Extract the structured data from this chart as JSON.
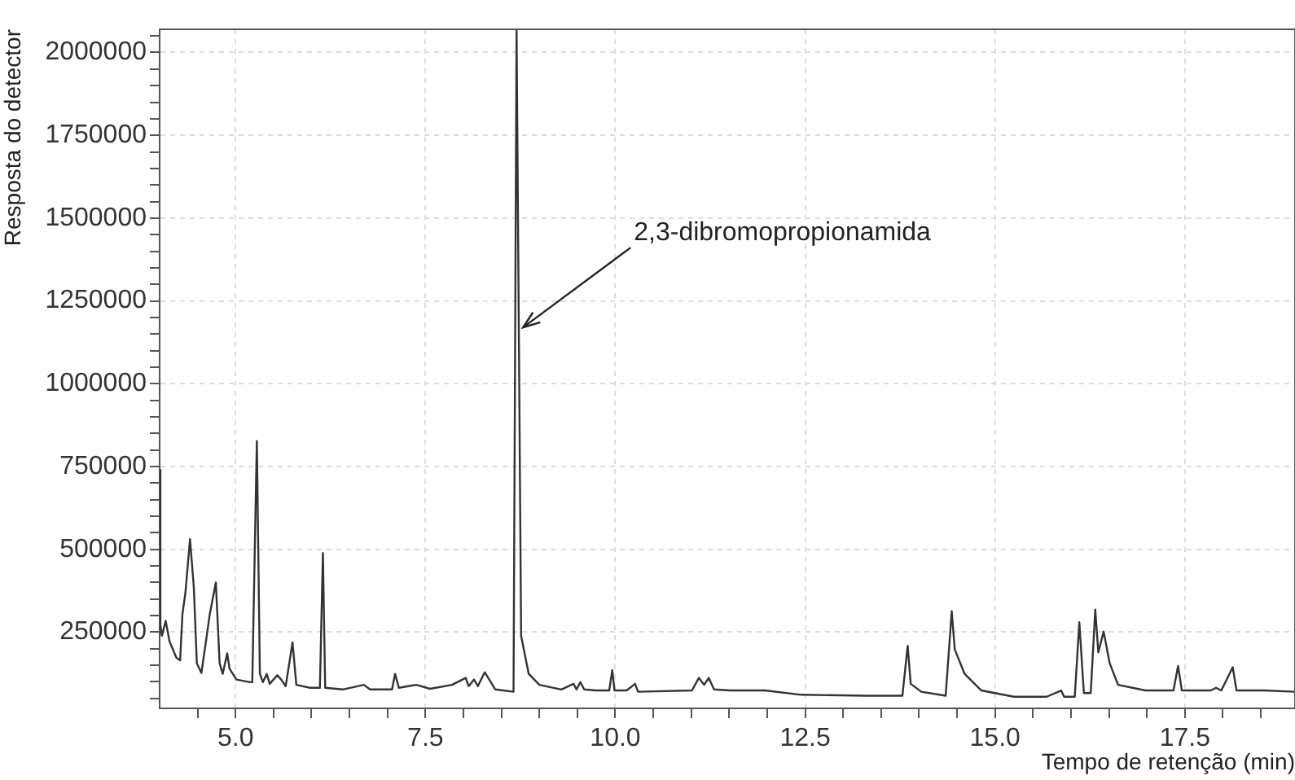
{
  "chart_data": {
    "type": "line",
    "xlabel": "Tempo de retenção (min)",
    "ylabel": "Resposta do detector",
    "annotations": [
      {
        "text": "2,3-dibromopropionamida",
        "x": 8.7,
        "y": 1170000
      }
    ],
    "xlim": [
      4.0,
      18.95
    ],
    "ylim": [
      20000,
      2070000
    ],
    "xticks": [
      {
        "value": 4.5,
        "label": null
      },
      {
        "value": 5,
        "label": "5.0"
      },
      {
        "value": 5.5,
        "label": null
      },
      {
        "value": 6,
        "label": null
      },
      {
        "value": 6.5,
        "label": null
      },
      {
        "value": 7,
        "label": null
      },
      {
        "value": 7.5,
        "label": "7.5"
      },
      {
        "value": 8,
        "label": null
      },
      {
        "value": 8.5,
        "label": null
      },
      {
        "value": 9,
        "label": null
      },
      {
        "value": 9.5,
        "label": null
      },
      {
        "value": 10,
        "label": "10.0"
      },
      {
        "value": 10.5,
        "label": null
      },
      {
        "value": 11,
        "label": null
      },
      {
        "value": 11.5,
        "label": null
      },
      {
        "value": 12,
        "label": null
      },
      {
        "value": 12.5,
        "label": "12.5"
      },
      {
        "value": 13,
        "label": null
      },
      {
        "value": 13.5,
        "label": null
      },
      {
        "value": 14,
        "label": null
      },
      {
        "value": 14.5,
        "label": null
      },
      {
        "value": 15,
        "label": "15.0"
      },
      {
        "value": 15.5,
        "label": null
      },
      {
        "value": 16,
        "label": null
      },
      {
        "value": 16.5,
        "label": null
      },
      {
        "value": 17,
        "label": null
      },
      {
        "value": 17.5,
        "label": "17.5"
      },
      {
        "value": 18,
        "label": null
      },
      {
        "value": 18.5,
        "label": null
      }
    ],
    "yticks": [
      {
        "value": 50000,
        "label": null
      },
      {
        "value": 100000,
        "label": null
      },
      {
        "value": 150000,
        "label": null
      },
      {
        "value": 200000,
        "label": null
      },
      250000,
      {
        "value": 300000,
        "label": null
      },
      {
        "value": 350000,
        "label": null
      },
      {
        "value": 400000,
        "label": null
      },
      {
        "value": 450000,
        "label": null
      },
      500000,
      {
        "value": 550000,
        "label": null
      },
      {
        "value": 600000,
        "label": null
      },
      {
        "value": 650000,
        "label": null
      },
      {
        "value": 700000,
        "label": null
      },
      750000,
      {
        "value": 800000,
        "label": null
      },
      {
        "value": 850000,
        "label": null
      },
      {
        "value": 900000,
        "label": null
      },
      {
        "value": 950000,
        "label": null
      },
      1000000,
      {
        "value": 1050000,
        "label": null
      },
      {
        "value": 1100000,
        "label": null
      },
      {
        "value": 1150000,
        "label": null
      },
      {
        "value": 1200000,
        "label": null
      },
      1250000,
      {
        "value": 1300000,
        "label": null
      },
      {
        "value": 1350000,
        "label": null
      },
      {
        "value": 1400000,
        "label": null
      },
      {
        "value": 1450000,
        "label": null
      },
      1500000,
      {
        "value": 1550000,
        "label": null
      },
      {
        "value": 1600000,
        "label": null
      },
      {
        "value": 1650000,
        "label": null
      },
      {
        "value": 1700000,
        "label": null
      },
      1750000,
      {
        "value": 1800000,
        "label": null
      },
      {
        "value": 1850000,
        "label": null
      },
      {
        "value": 1900000,
        "label": null
      },
      {
        "value": 1950000,
        "label": null
      },
      2000000,
      {
        "value": 2050000,
        "label": null
      }
    ],
    "grid": true,
    "legend": false,
    "marker": "none",
    "line_style": "solid",
    "series": [
      {
        "color": "#333333",
        "x": [
          4.0,
          4.01,
          4.03,
          4.08,
          4.13,
          4.22,
          4.27,
          4.3,
          4.34,
          4.4,
          4.45,
          4.49,
          4.55,
          4.6,
          4.66,
          4.74,
          4.79,
          4.83,
          4.89,
          4.92,
          5.01,
          5.19,
          5.22,
          5.28,
          5.32,
          5.36,
          5.41,
          5.45,
          5.55,
          5.6,
          5.66,
          5.75,
          5.8,
          5.98,
          6.11,
          6.15,
          6.18,
          6.41,
          6.69,
          6.77,
          7.06,
          7.1,
          7.15,
          7.38,
          7.56,
          7.85,
          8.03,
          8.07,
          8.14,
          8.19,
          8.28,
          8.34,
          8.42,
          8.66,
          8.7,
          8.76,
          8.86,
          9.0,
          9.29,
          9.45,
          9.49,
          9.54,
          9.59,
          9.75,
          9.92,
          9.96,
          9.99,
          10.15,
          10.26,
          10.3,
          11.01,
          11.1,
          11.17,
          11.23,
          11.3,
          11.51,
          11.97,
          12.45,
          13.31,
          13.78,
          13.85,
          13.89,
          14.03,
          14.35,
          14.43,
          14.47,
          14.6,
          14.82,
          15.25,
          15.68,
          15.87,
          15.91,
          16.05,
          16.11,
          16.17,
          16.26,
          16.32,
          16.36,
          16.43,
          16.51,
          16.62,
          16.98,
          17.35,
          17.41,
          17.46,
          17.84,
          17.91,
          17.98,
          18.13,
          18.18,
          18.55,
          18.95
        ],
        "values": [
          740000,
          270000,
          239000,
          284000,
          222000,
          173000,
          165000,
          304000,
          370000,
          531000,
          386000,
          156000,
          127000,
          206000,
          304000,
          400000,
          156000,
          124000,
          186000,
          140000,
          107000,
          99000,
          99000,
          827000,
          124000,
          99000,
          124000,
          94000,
          120000,
          107000,
          87000,
          219000,
          91000,
          82000,
          82000,
          489000,
          82000,
          77000,
          91000,
          77000,
          77000,
          124000,
          82000,
          91000,
          79000,
          91000,
          112000,
          87000,
          107000,
          87000,
          129000,
          107000,
          77000,
          70000,
          2070000,
          239000,
          124000,
          91000,
          77000,
          94000,
          77000,
          99000,
          77000,
          74000,
          74000,
          135000,
          74000,
          74000,
          94000,
          70000,
          74000,
          112000,
          91000,
          112000,
          77000,
          74000,
          74000,
          61000,
          58000,
          58000,
          209000,
          94000,
          70000,
          58000,
          313000,
          198000,
          124000,
          74000,
          55000,
          55000,
          74000,
          55000,
          55000,
          280000,
          66000,
          66000,
          318000,
          189000,
          252000,
          156000,
          91000,
          74000,
          74000,
          148000,
          74000,
          74000,
          82000,
          74000,
          144000,
          74000,
          74000,
          70000
        ]
      }
    ]
  }
}
